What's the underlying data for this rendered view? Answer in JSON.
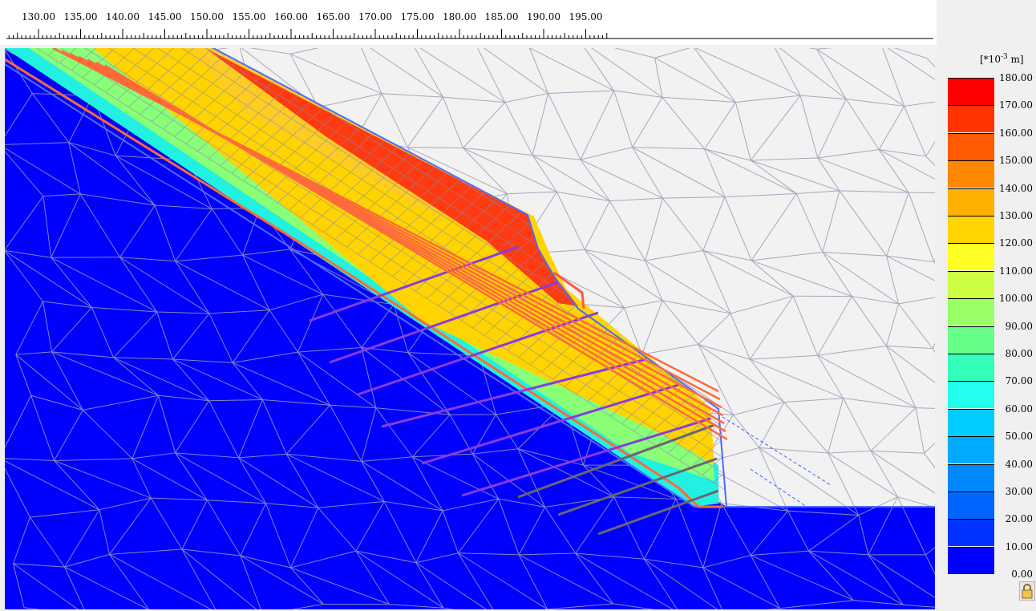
{
  "ruler": {
    "ticks": [
      "130.00",
      "135.00",
      "140.00",
      "145.00",
      "150.00",
      "155.00",
      "160.00",
      "165.00",
      "170.00",
      "175.00",
      "180.00",
      "185.00",
      "190.00",
      "195.00"
    ],
    "start": 130,
    "end": 197.5
  },
  "legend": {
    "unit_prefix": "[*10",
    "unit_exp": "-3",
    "unit_suffix": " m]",
    "labels": [
      "180.00",
      "170.00",
      "160.00",
      "150.00",
      "140.00",
      "130.00",
      "120.00",
      "110.00",
      "100.00",
      "90.00",
      "80.00",
      "70.00",
      "60.00",
      "50.00",
      "40.00",
      "30.00",
      "20.00",
      "10.00",
      "0.00"
    ],
    "colors": [
      "#ff0000",
      "#ff3300",
      "#ff5a00",
      "#ff8800",
      "#ffb000",
      "#ffd400",
      "#ffff26",
      "#ccff44",
      "#99ff66",
      "#66ff88",
      "#33ffbb",
      "#22ffee",
      "#00ccff",
      "#00aaff",
      "#0088ff",
      "#0066ff",
      "#0033ff",
      "#0000ff"
    ]
  },
  "icons": {
    "lock": "lock-icon"
  }
}
